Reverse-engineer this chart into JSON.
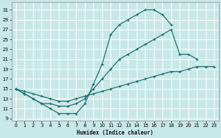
{
  "xlabel": "Humidex (Indice chaleur)",
  "bg_color": "#c8e8e8",
  "grid_color": "#ffffff",
  "line_color": "#1a6b6b",
  "xlim": [
    -0.5,
    23.5
  ],
  "ylim": [
    8.5,
    32.5
  ],
  "xtick_labels": [
    "0",
    "1",
    "2",
    "3",
    "4",
    "5",
    "6",
    "7",
    "8",
    "9",
    "10",
    "11",
    "12",
    "13",
    "14",
    "15",
    "16",
    "17",
    "18",
    "19",
    "20",
    "21",
    "22",
    "23"
  ],
  "xtick_vals": [
    0,
    1,
    2,
    3,
    4,
    5,
    6,
    7,
    8,
    9,
    10,
    11,
    12,
    13,
    14,
    15,
    16,
    17,
    18,
    19,
    20,
    21,
    22,
    23
  ],
  "ytick_vals": [
    9,
    11,
    13,
    15,
    17,
    19,
    21,
    23,
    25,
    27,
    29,
    31
  ],
  "s1x": [
    0,
    1,
    2,
    3,
    4,
    5,
    6,
    7,
    8,
    9,
    10,
    11,
    12,
    13,
    14,
    15,
    16,
    17,
    18
  ],
  "s1y": [
    15,
    14,
    13,
    12,
    11,
    10,
    10,
    10,
    12,
    16,
    20,
    26,
    28,
    29,
    30,
    31,
    31,
    30,
    28
  ],
  "s2x": [
    0,
    1,
    2,
    3,
    4,
    5,
    6,
    7,
    8,
    9,
    10,
    11,
    12,
    13,
    14,
    15,
    16,
    17,
    18,
    19,
    20,
    21
  ],
  "s2y": [
    15,
    14,
    13,
    12,
    12,
    11.5,
    11.5,
    12,
    13,
    15,
    17,
    19,
    21,
    22,
    23,
    24,
    25,
    26,
    27,
    22,
    22,
    21
  ],
  "s3x": [
    0,
    1,
    2,
    3,
    4,
    5,
    6,
    7,
    8,
    9,
    10,
    11,
    12,
    13,
    14,
    15,
    16,
    17,
    18,
    19,
    20,
    21,
    22,
    23
  ],
  "s3y": [
    15,
    14.5,
    14,
    13.5,
    13,
    12.5,
    12.5,
    13,
    13.5,
    14,
    14.5,
    15,
    15.5,
    16,
    16.5,
    17,
    17.5,
    18,
    18.5,
    18.5,
    19,
    19.5,
    19.5,
    19.5
  ]
}
